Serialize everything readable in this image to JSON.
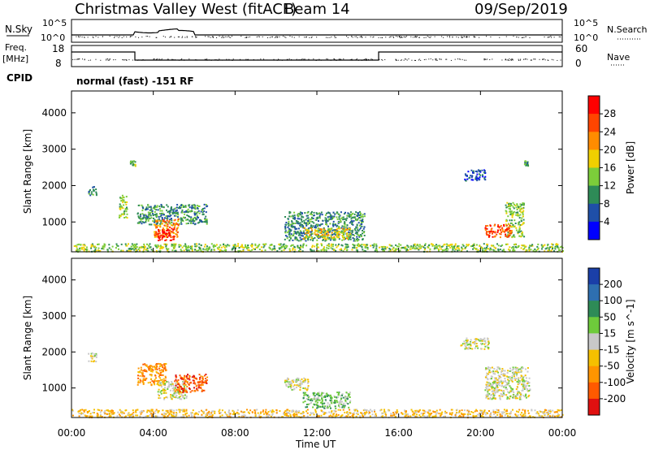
{
  "header": {
    "site": "Christmas Valley West (fitACF)",
    "beam": "Beam 14",
    "date": "09/Sep/2019"
  },
  "strip_labels": {
    "nsky": "N.Sky",
    "nsky_top": "10^5",
    "nsky_bot": "10^0",
    "nsearch": "N.Search",
    "nsearch_top": "10^5",
    "nsearch_bot": "10^0",
    "freq_a": "Freq.",
    "freq_b": "[MHz]",
    "freq_top": "18",
    "freq_bot": "8",
    "nave": "Nave",
    "nave_top": "60",
    "nave_bot": "0",
    "cpid": "CPID",
    "mode": "normal (fast) -151 RF"
  },
  "chart_data": [
    {
      "type": "heatmap",
      "panel": "power",
      "xlabel": "",
      "ylabel": "Slant Range [km]",
      "x_range_hours": [
        0,
        24
      ],
      "ylim": [
        180,
        4600
      ],
      "y_ticks": [
        "1000",
        "2000",
        "3000",
        "4000"
      ],
      "y_tick_values": [
        1000,
        2000,
        3000,
        4000
      ],
      "colorbar": {
        "label": "Power [dB]",
        "ticks": [
          "4",
          "8",
          "12",
          "16",
          "20",
          "24",
          "28"
        ],
        "tick_values": [
          4,
          8,
          12,
          16,
          20,
          24,
          28
        ],
        "colors": [
          "#0000ff",
          "#1f4fa8",
          "#2e8b57",
          "#7ccd3a",
          "#f0d000",
          "#ff8c00",
          "#ff4500",
          "#ff0000"
        ]
      },
      "regions": [
        {
          "t": [
            0.8,
            1.2
          ],
          "r": [
            1750,
            2000
          ],
          "level": 2
        },
        {
          "t": [
            2.3,
            2.7
          ],
          "r": [
            1100,
            1750
          ],
          "level": 3
        },
        {
          "t": [
            2.85,
            3.1
          ],
          "r": [
            2550,
            2700
          ],
          "level": 3
        },
        {
          "t": [
            3.2,
            6.6
          ],
          "r": [
            950,
            1500
          ],
          "level": 2
        },
        {
          "t": [
            4.0,
            5.2
          ],
          "r": [
            600,
            1100
          ],
          "level": 5
        },
        {
          "t": [
            4.2,
            5.0
          ],
          "r": [
            500,
            850
          ],
          "level": 7
        },
        {
          "t": [
            10.4,
            14.3
          ],
          "r": [
            500,
            1300
          ],
          "level": 2
        },
        {
          "t": [
            11.3,
            13.6
          ],
          "r": [
            550,
            850
          ],
          "level": 4
        },
        {
          "t": [
            19.2,
            20.2
          ],
          "r": [
            2150,
            2450
          ],
          "level": 1
        },
        {
          "t": [
            21.2,
            22.1
          ],
          "r": [
            600,
            1550
          ],
          "level": 3
        },
        {
          "t": [
            20.2,
            21.5
          ],
          "r": [
            600,
            950
          ],
          "level": 6
        },
        {
          "t": [
            22.1,
            22.3
          ],
          "r": [
            2550,
            2700
          ],
          "level": 2
        },
        {
          "t": [
            0.0,
            24.0
          ],
          "r": [
            200,
            420
          ],
          "level": 3
        }
      ]
    },
    {
      "type": "heatmap",
      "panel": "velocity",
      "xlabel": "Time UT",
      "ylabel": "Slant Range [km]",
      "x_range_hours": [
        0,
        24
      ],
      "x_ticks": [
        "00:00",
        "04:00",
        "08:00",
        "12:00",
        "16:00",
        "20:00",
        "00:00"
      ],
      "x_tick_hours": [
        0,
        4,
        8,
        12,
        16,
        20,
        24
      ],
      "ylim": [
        180,
        4600
      ],
      "y_ticks": [
        "1000",
        "2000",
        "3000",
        "4000"
      ],
      "y_tick_values": [
        1000,
        2000,
        3000,
        4000
      ],
      "colorbar": {
        "label": "Velocity [m s^-1]",
        "ticks": [
          "200",
          "100",
          "50",
          "15",
          "-15",
          "-50",
          "-100",
          "-200"
        ],
        "tick_values": [
          200,
          100,
          50,
          15,
          -15,
          -50,
          -100,
          -200
        ],
        "colors": [
          "#1a3fa8",
          "#2e6fb0",
          "#2e8b57",
          "#6ecb3b",
          "#c8c8c8",
          "#f5c000",
          "#ff9500",
          "#ff5a00",
          "#e01010"
        ]
      },
      "regions": [
        {
          "t": [
            0.8,
            1.2
          ],
          "r": [
            1750,
            2000
          ],
          "level": 4
        },
        {
          "t": [
            3.2,
            4.6
          ],
          "r": [
            1100,
            1700
          ],
          "level": 6
        },
        {
          "t": [
            4.2,
            5.6
          ],
          "r": [
            700,
            1200
          ],
          "level": 4
        },
        {
          "t": [
            5.0,
            6.6
          ],
          "r": [
            900,
            1400
          ],
          "level": 7
        },
        {
          "t": [
            11.3,
            13.6
          ],
          "r": [
            450,
            900
          ],
          "level": 3
        },
        {
          "t": [
            10.4,
            11.6
          ],
          "r": [
            950,
            1300
          ],
          "level": 4
        },
        {
          "t": [
            19.0,
            20.4
          ],
          "r": [
            2100,
            2400
          ],
          "level": 4
        },
        {
          "t": [
            20.2,
            22.4
          ],
          "r": [
            700,
            1600
          ],
          "level": 4
        },
        {
          "t": [
            0.0,
            24.0
          ],
          "r": [
            200,
            420
          ],
          "level": 5
        }
      ]
    }
  ]
}
